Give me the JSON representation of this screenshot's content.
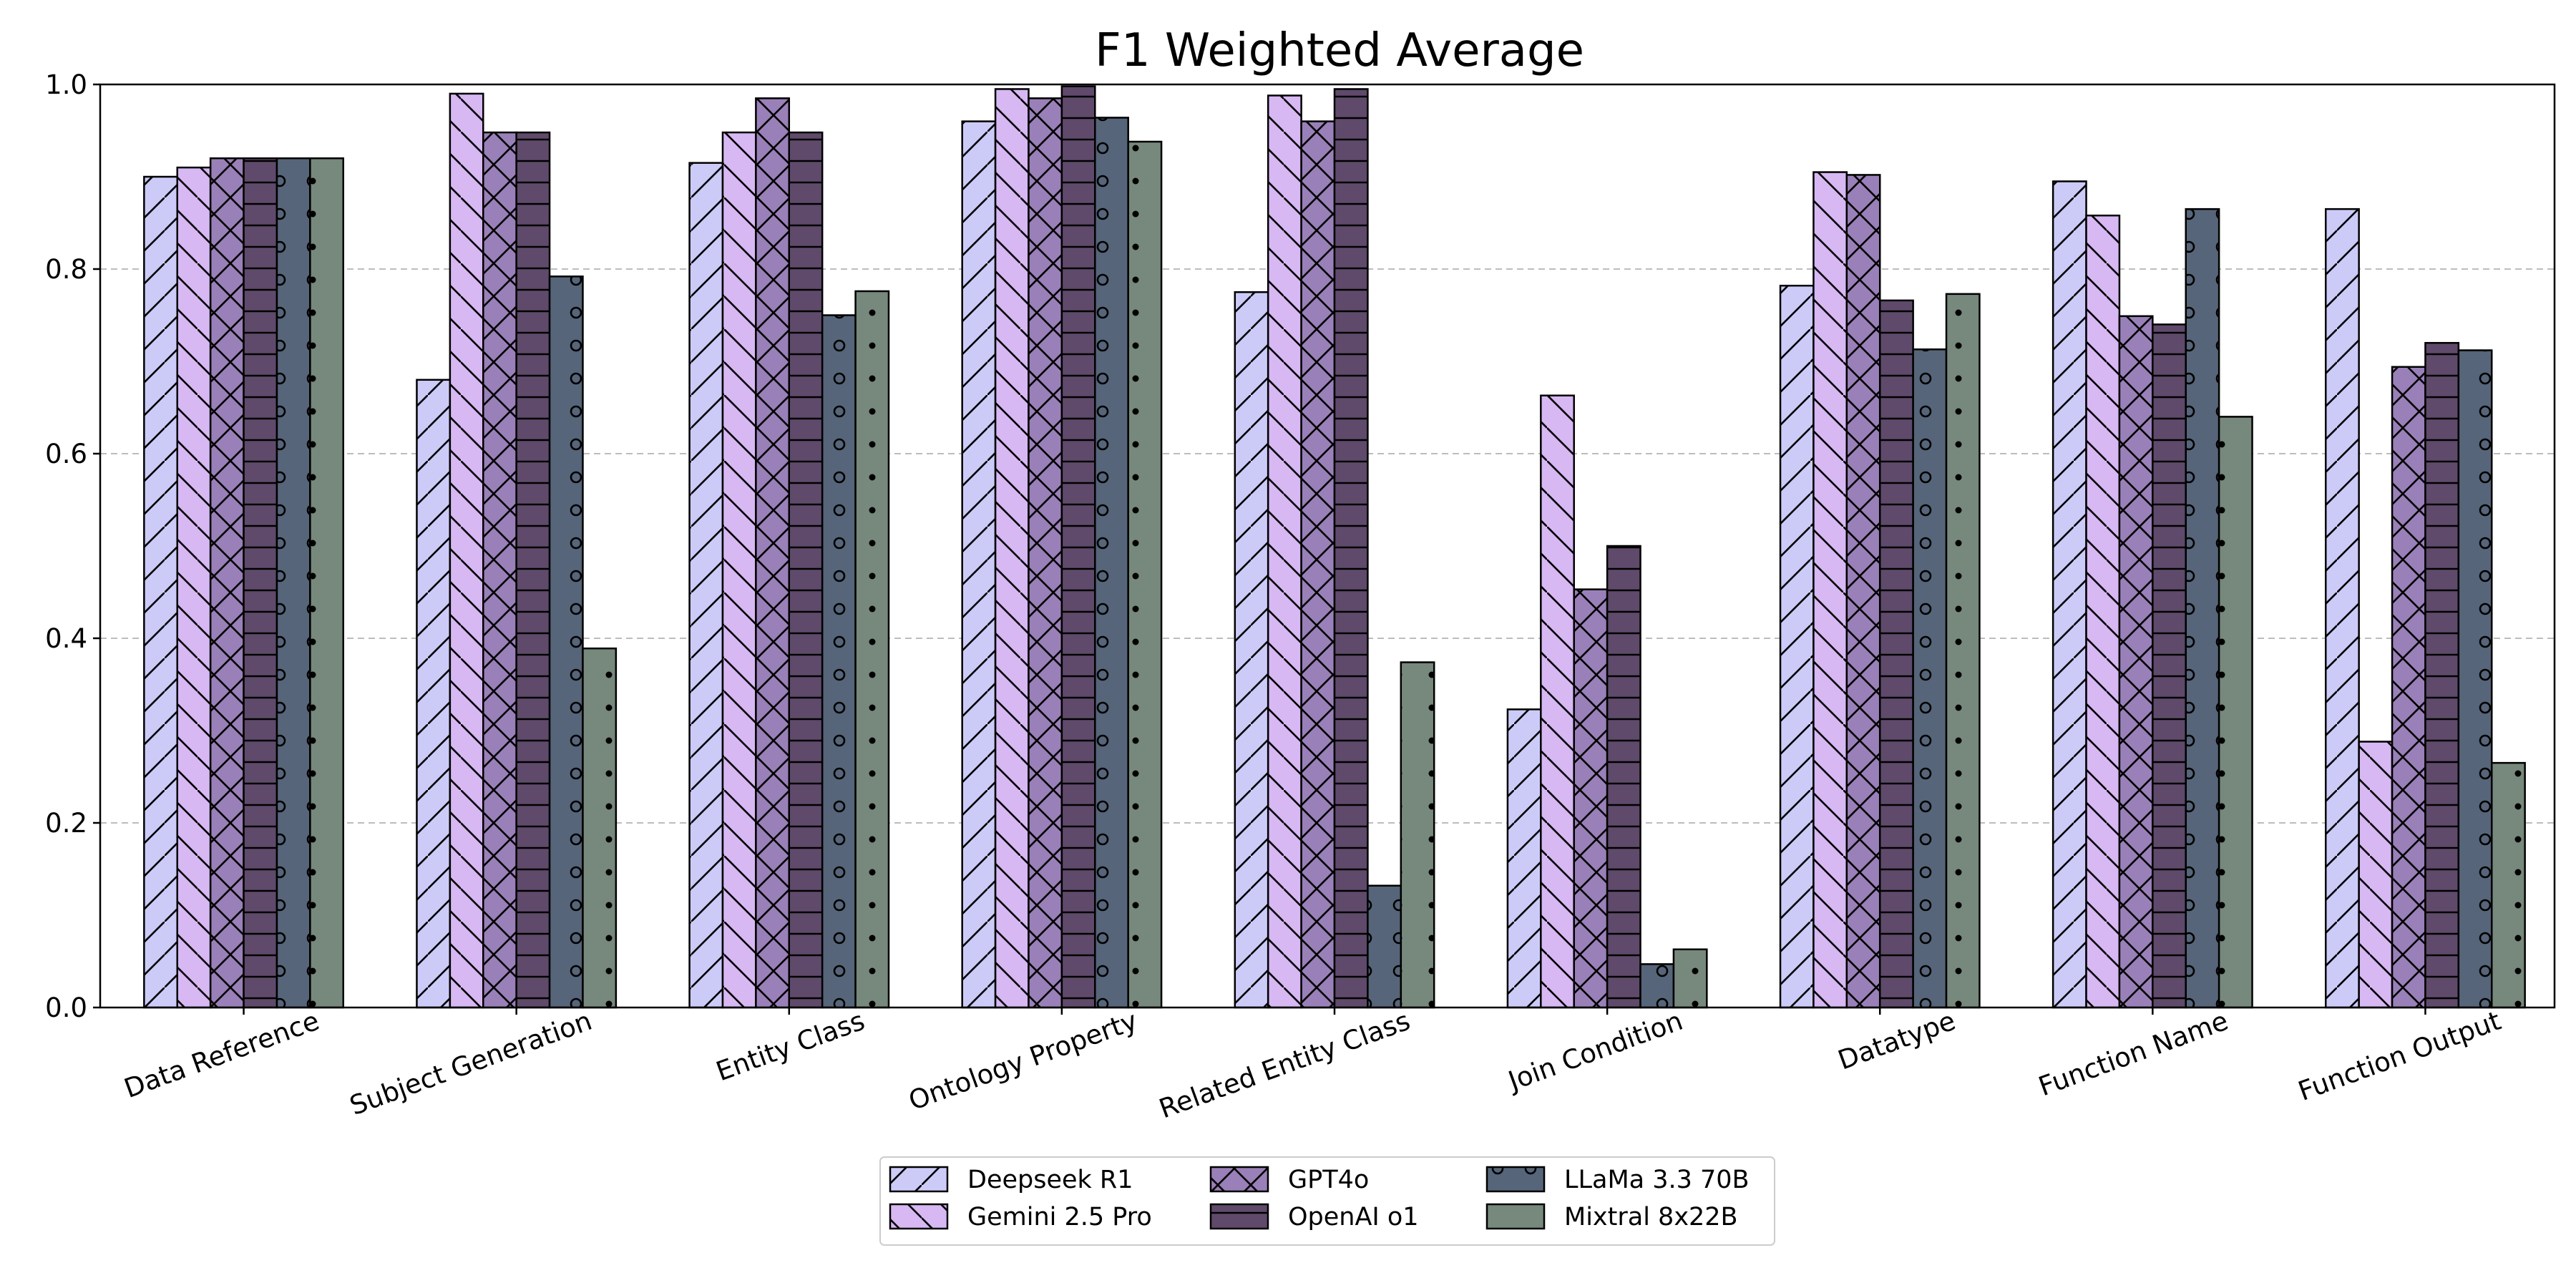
{
  "chart_data": {
    "type": "bar",
    "title": "F1 Weighted Average",
    "xlabel": "",
    "ylabel": "",
    "ylim": [
      0,
      1.0
    ],
    "yticks": [
      "0.0",
      "0.2",
      "0.4",
      "0.6",
      "0.8",
      "1.0"
    ],
    "grid": "y-dashed",
    "legend_position": "bottom-center",
    "categories": [
      "Data Reference",
      "Subject Generation",
      "Entity Class",
      "Ontology Property",
      "Related Entity Class",
      "Join Condition",
      "Datatype",
      "Function Name",
      "Function Output"
    ],
    "series": [
      {
        "name": "Deepseek R1",
        "color": "#cccbf8",
        "hatch": "slash",
        "values": [
          0.9,
          0.68,
          0.915,
          0.96,
          0.775,
          0.323,
          0.782,
          0.895,
          0.865
        ]
      },
      {
        "name": "Gemini 2.5 Pro",
        "color": "#d7b8f3",
        "hatch": "backslash",
        "values": [
          0.91,
          0.99,
          0.948,
          0.995,
          0.988,
          0.663,
          0.905,
          0.858,
          0.288
        ]
      },
      {
        "name": "GPT4o",
        "color": "#9a80b8",
        "hatch": "cross",
        "values": [
          0.92,
          0.948,
          0.985,
          0.985,
          0.96,
          0.453,
          0.902,
          0.749,
          0.694
        ]
      },
      {
        "name": "OpenAI o1",
        "color": "#5f4a6b",
        "hatch": "horizontal",
        "values": [
          0.92,
          0.948,
          0.948,
          0.998,
          0.995,
          0.5,
          0.766,
          0.74,
          0.72
        ]
      },
      {
        "name": "LLaMa 3.3 70B",
        "color": "#566579",
        "hatch": "circle",
        "values": [
          0.92,
          0.792,
          0.75,
          0.964,
          0.132,
          0.047,
          0.713,
          0.865,
          0.712
        ]
      },
      {
        "name": "Mixtral 8x22B",
        "color": "#76897c",
        "hatch": "dot",
        "values": [
          0.92,
          0.389,
          0.776,
          0.938,
          0.374,
          0.063,
          0.773,
          0.64,
          0.265
        ]
      }
    ]
  }
}
